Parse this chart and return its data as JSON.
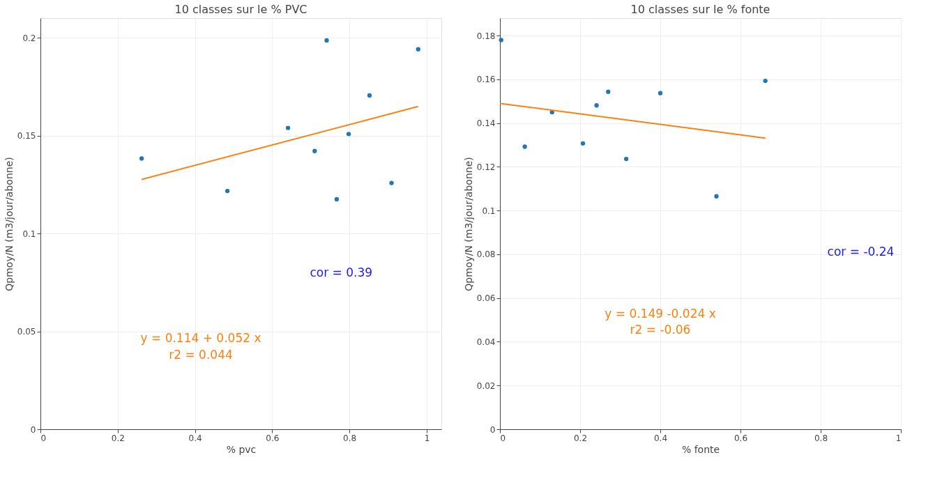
{
  "chart_data": [
    {
      "type": "scatter",
      "title": "10 classes sur le % PVC",
      "xlabel": "% pvc",
      "ylabel": "Qpmoy/N (m3/jour/abonne)",
      "xlim": [
        0,
        1.038
      ],
      "ylim": [
        0,
        0.21
      ],
      "xticks": [
        0,
        0.2,
        0.4,
        0.6,
        0.8,
        1
      ],
      "yticks": [
        0,
        0.05,
        0.1,
        0.15,
        0.2
      ],
      "grid": true,
      "marker": "circle",
      "series": [
        {
          "type": "scatter",
          "color": "#1f77b4",
          "x": [
            0.262,
            0.484,
            0.641,
            0.71,
            0.741,
            0.767,
            0.798,
            0.852,
            0.909,
            0.978
          ],
          "values": [
            0.1383,
            0.1217,
            0.1539,
            0.1421,
            0.1986,
            0.1175,
            0.1508,
            0.1705,
            0.1258,
            0.1941
          ]
        },
        {
          "type": "line",
          "marker": "none",
          "color": "#ff7f0e",
          "x": [
            0.262,
            0.978
          ],
          "values": [
            0.1276,
            0.1649
          ]
        }
      ],
      "annotations": [
        "y = 0.114 + 0.052 x",
        "r2 = 0.044",
        "cor = 0.39"
      ]
    },
    {
      "type": "scatter",
      "title": "10 classes sur le % fonte",
      "xlabel": "% fonte",
      "ylabel": "Qpmoy/N (m3/jour/abonne)",
      "xlim": [
        0,
        1
      ],
      "ylim": [
        0,
        0.188
      ],
      "xticks": [
        0,
        0.2,
        0.4,
        0.6,
        0.8,
        1
      ],
      "yticks": [
        0,
        0.02,
        0.04,
        0.06,
        0.08,
        0.1,
        0.12,
        0.14,
        0.16,
        0.18
      ],
      "grid": true,
      "marker": "circle",
      "series": [
        {
          "type": "scatter",
          "color": "#1f77b4",
          "x": [
            0.003,
            0.062,
            0.13,
            0.207,
            0.241,
            0.27,
            0.315,
            0.4,
            0.54,
            0.662
          ],
          "values": [
            0.178,
            0.1292,
            0.145,
            0.1307,
            0.1481,
            0.1543,
            0.1236,
            0.1537,
            0.1065,
            0.1593
          ]
        },
        {
          "type": "line",
          "marker": "none",
          "color": "#ff7f0e",
          "x": [
            0.0,
            0.662
          ],
          "values": [
            0.149,
            0.1331
          ]
        }
      ],
      "annotations": [
        "y = 0.149 -0.024 x",
        "r2 = -0.06",
        "cor = -0.24"
      ]
    }
  ]
}
